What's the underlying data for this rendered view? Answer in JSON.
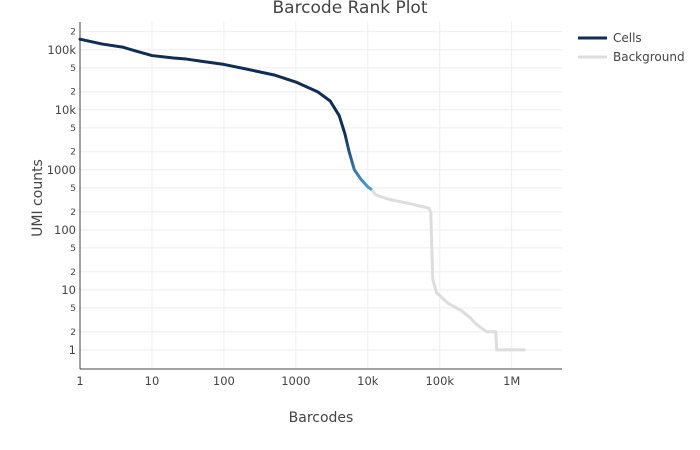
{
  "chart_data": {
    "type": "line",
    "title": "Barcode Rank Plot",
    "xlabel": "Barcodes",
    "ylabel": "UMI counts",
    "x_scale": "log",
    "y_scale": "log",
    "xlim": [
      1,
      5000000
    ],
    "ylim": [
      0.48,
      290000
    ],
    "grid": true,
    "legend_position": "top-right",
    "x_ticks": [
      1,
      10,
      100,
      1000,
      10000,
      100000,
      1000000
    ],
    "x_tick_labels": [
      "1",
      "10",
      "100",
      "1000",
      "10k",
      "100k",
      "1M"
    ],
    "y_ticks": [
      1,
      10,
      100,
      1000,
      10000,
      100000
    ],
    "y_tick_labels": [
      "1",
      "10",
      "100",
      "1000",
      "10k",
      "100k"
    ],
    "y_minor_ticks": [
      2,
      5,
      20,
      50,
      200,
      500,
      2000,
      5000,
      20000,
      50000,
      200000
    ],
    "y_minor_tick_labels": [
      "2",
      "5",
      "2",
      "5",
      "2",
      "5",
      "2",
      "5",
      "2",
      "5",
      "2"
    ],
    "series": [
      {
        "name": "Cells",
        "color": "#0f2d55",
        "gradient_color": "#4a9bd0",
        "points": [
          [
            1,
            150000
          ],
          [
            2,
            125000
          ],
          [
            4,
            110000
          ],
          [
            6,
            95000
          ],
          [
            10,
            80000
          ],
          [
            20,
            73000
          ],
          [
            30,
            70000
          ],
          [
            50,
            64000
          ],
          [
            100,
            57000
          ],
          [
            200,
            48000
          ],
          [
            500,
            38000
          ],
          [
            1000,
            29000
          ],
          [
            2000,
            20000
          ],
          [
            3000,
            14000
          ],
          [
            4000,
            8000
          ],
          [
            4800,
            4000
          ],
          [
            5500,
            2000
          ],
          [
            6500,
            1000
          ],
          [
            8000,
            700
          ],
          [
            10000,
            520
          ],
          [
            11000,
            480
          ]
        ]
      },
      {
        "name": "Background",
        "color": "#dddddd",
        "points": [
          [
            11000,
            480
          ],
          [
            13000,
            380
          ],
          [
            20000,
            320
          ],
          [
            40000,
            270
          ],
          [
            70000,
            230
          ],
          [
            75000,
            200
          ],
          [
            80000,
            15
          ],
          [
            90000,
            9
          ],
          [
            100000,
            8
          ],
          [
            130000,
            6
          ],
          [
            170000,
            5
          ],
          [
            200000,
            4.5
          ],
          [
            260000,
            3.5
          ],
          [
            330000,
            2.6
          ],
          [
            450000,
            2
          ],
          [
            600000,
            2
          ],
          [
            620000,
            1
          ],
          [
            1500000,
            1
          ]
        ]
      }
    ]
  }
}
